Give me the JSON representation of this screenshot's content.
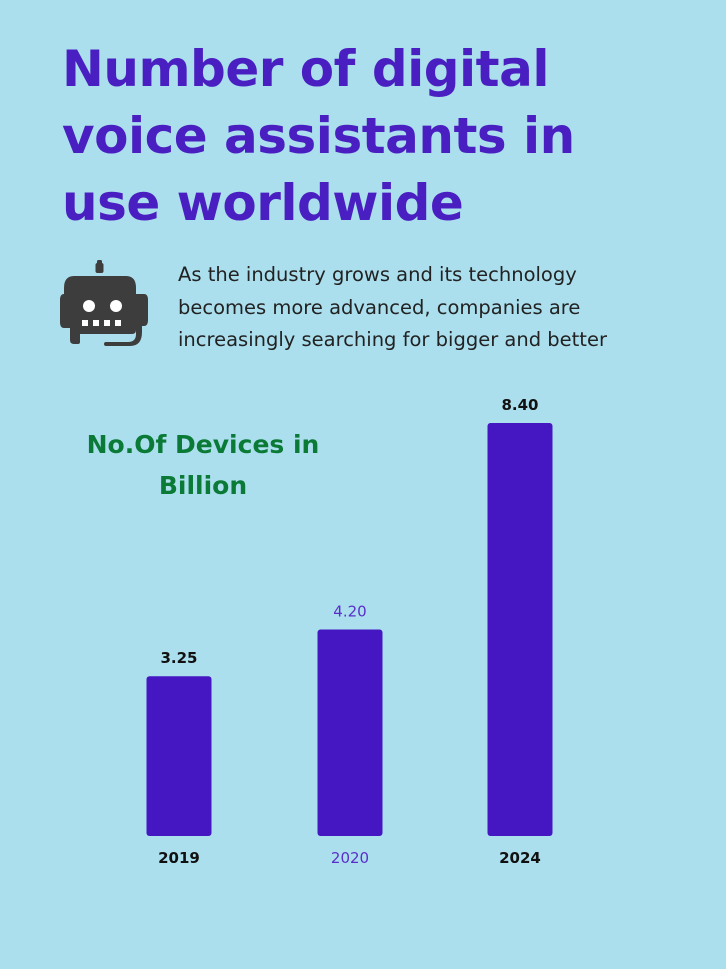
{
  "headline": {
    "lines": [
      "Number of digital",
      "voice assistants in",
      "use worldwide"
    ]
  },
  "description": {
    "lines": [
      "As the industry grows and its technology",
      "becomes more advanced, companies are",
      "increasingly searching for bigger and better"
    ]
  },
  "icon": {
    "name": "robot-icon"
  },
  "colors": {
    "background": "#abdfee",
    "headline": "#4a1fc1",
    "bar": "#4517c3",
    "chart_title": "#0a7a36",
    "highlight_label": "#5a2fc8"
  },
  "chart_data": {
    "type": "bar",
    "title": "No.Of Devices in Billion",
    "title_lines": [
      "No.Of Devices in",
      "Billion"
    ],
    "categories": [
      "2019",
      "2020",
      "2024"
    ],
    "values": [
      3.25,
      4.2,
      8.4
    ],
    "value_labels": [
      "3.25",
      "4.20",
      "8.40"
    ],
    "highlighted_category": "2020",
    "xlabel": "",
    "ylabel": "",
    "ylim": [
      0,
      8.4
    ],
    "grid": false,
    "legend": "none"
  }
}
